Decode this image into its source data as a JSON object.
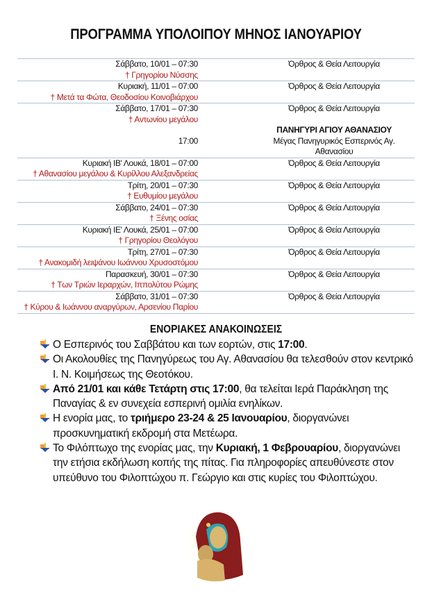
{
  "title": "ΠΡΟΓΡΑΜΜΑ ΥΠΟΛΟΙΠΟΥ ΜΗΝΟΣ ΙΑΝΟΥΑΡΙΟΥ",
  "schedule": [
    {
      "date": "Σάββατο, 10/01 – 07:30",
      "saint": "† Γρηγορίου Νύσσης",
      "service": "Όρθρος & Θεία Λειτουργία"
    },
    {
      "date": "Κυριακή, 11/01 – 07:00",
      "saint": "† Μετά τα Φώτα, Θεοδοσίου Κοινοβιάρχου",
      "service": "Όρθρος & Θεία Λειτουργία"
    },
    {
      "date": "Σάββατο, 17/01 – 07:30",
      "saint": "† Αντωνίου μεγάλου",
      "service": "Όρθρος & Θεία Λειτουργία",
      "extra_heading": "ΠΑΝΗΓΥΡΙ ΑΓΙΟΥ ΑΘΑΝΑΣΙΟΥ",
      "extra_time": "17:00",
      "extra_service": "Μέγας Πανηγυρικός Εσπερινός Αγ. Αθανασίου"
    },
    {
      "date": "Κυριακή ΙΒ' Λουκά, 18/01 – 07:00",
      "saint": "† Αθανασίου μεγάλου & Κυρίλλου Αλεξανδρείας",
      "service": "Όρθρος & Θεία Λειτουργία"
    },
    {
      "date": "Τρίτη, 20/01 – 07:30",
      "saint": "† Ευθυμίου μεγάλου",
      "service": "Όρθρος & Θεία Λειτουργία"
    },
    {
      "date": "Σάββατο, 24/01 – 07:30",
      "saint": "† Ξένης οσίας",
      "service": "Όρθρος & Θεία Λειτουργία"
    },
    {
      "date": "Κυριακή ΙΕ' Λουκά, 25/01 – 07:00",
      "saint": "† Γρηγορίου Θεολόγου",
      "service": "Όρθρος & Θεία Λειτουργία"
    },
    {
      "date": "Τρίτη, 27/01 – 07:30",
      "saint": "† Ανακομιδή λειψάνου Ιωάννου Χρυσοστόμου",
      "service": "Όρθρος & Θεία Λειτουργία"
    },
    {
      "date": "Παρασκευή, 30/01 – 07:30",
      "saint": "† Των Τριών Ιεραρχών, Ιππολύτου Ρώμης",
      "service": "Όρθρος & Θεία Λειτουργία"
    },
    {
      "date": "Σάββατο, 31/01 – 07:30",
      "saint": "† Κύρου & Ιωάννου αναργύρων, Αρσενίου Παρίου",
      "service": "Όρθρος & Θεία Λειτουργία"
    }
  ],
  "announcements": {
    "title": "ΕΝΟΡΙΑΚΕΣ ΑΝΑΚΟΙΝΩΣΕΙΣ",
    "bullet_icon": "arrow-down-bullet-icon",
    "items": [
      [
        {
          "t": "Ο Εσπερινός του Σαββάτου και των εορτών, στις "
        },
        {
          "t": "17:00",
          "b": true
        },
        {
          "t": "."
        }
      ],
      [
        {
          "t": "Οι Ακολουθίες της Πανηγύρεως του Αγ. Αθανασίου θα τελεσθούν στον κεντρικό Ι. Ν. Κοιμήσεως της Θεοτόκου."
        }
      ],
      [
        {
          "t": "Από 21/01 και κάθε Τετάρτη στις 17:00",
          "b": true
        },
        {
          "t": ", θα τελείται Ιερά Παράκληση της Παναγίας & εν συνεχεία εσπερινή ομιλία ενηλίκων."
        }
      ],
      [
        {
          "t": "Η ενορία μας, το "
        },
        {
          "t": "τριήμερο 23-24 & 25 Ιανουαρίου",
          "b": true
        },
        {
          "t": ", διοργανώνει προσκυνηματική εκδρομή στα Μετέωρα."
        }
      ],
      [
        {
          "t": "Το Φιλόπτωχο της ενορίας μας, την "
        },
        {
          "t": "Κυριακή, 1 Φεβρουαρίου",
          "b": true
        },
        {
          "t": ", διοργανώνει την ετήσια εκδήλωση κοπής της πίτας. Για πληροφορίες απευθύνεστε στον υπεύθυνο του Φιλοπτώχου π. Γεώργιο και στις κυρίες του Φιλοπτώχου."
        }
      ]
    ]
  },
  "image": {
    "icon": "virgin-mary-icon"
  },
  "colors": {
    "saint_text": "#b01818",
    "row_divider": "#b3c1d1"
  }
}
